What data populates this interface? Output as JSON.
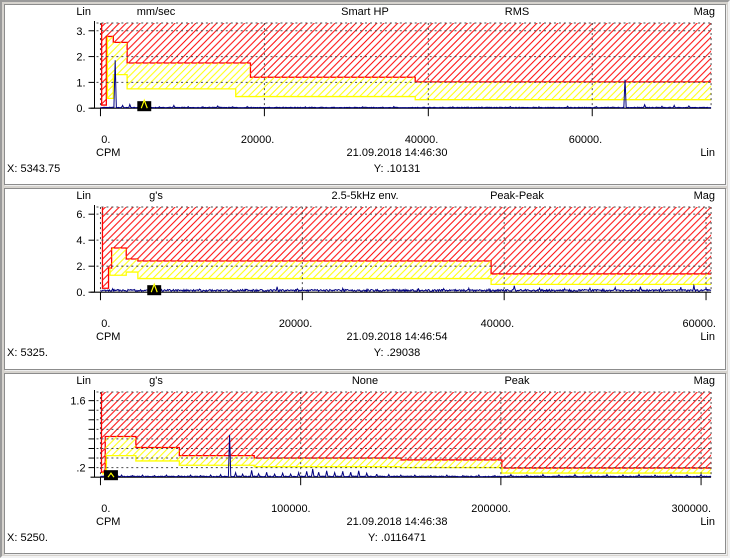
{
  "colors": {
    "alarm_red": "#ff0000",
    "alert_yellow": "#ffff00",
    "trace_blue": "#000080",
    "grid_dash": "#4a4a4a",
    "axis_black": "#000000",
    "marker_black": "#000000",
    "panel_bg": "#ffffff",
    "frame_gray": "#d6d3ce"
  },
  "panels": [
    {
      "header": {
        "scale": "Lin",
        "unit": "mm/sec",
        "filter": "Smart HP",
        "detection": "RMS",
        "mag": "Mag"
      },
      "footer": {
        "x_unit": "CPM",
        "timestamp": "21.09.2018 14:46:30",
        "scale_right": "Lin",
        "cursor_x": "X: 5343.75",
        "cursor_y": "Y: .10131"
      }
    },
    {
      "header": {
        "scale": "Lin",
        "unit": "g's",
        "filter": "2.5-5kHz env.",
        "detection": "Peak-Peak",
        "mag": "Mag"
      },
      "footer": {
        "x_unit": "CPM",
        "timestamp": "21.09.2018 14:46:54",
        "scale_right": "Lin",
        "cursor_x": "X: 5325.",
        "cursor_y": "Y: .29038"
      }
    },
    {
      "header": {
        "scale": "Lin",
        "unit": "g's",
        "filter": "None",
        "detection": "Peak",
        "mag": "Mag"
      },
      "footer": {
        "x_unit": "CPM",
        "timestamp": "21.09.2018 14:46:38",
        "scale_right": "Lin",
        "cursor_x": "X: 5250.",
        "cursor_y": "Y: .0116471"
      }
    }
  ],
  "chart_data": [
    {
      "type": "line",
      "title": "Smart HP spectrum",
      "unit": "mm/sec",
      "detection": "RMS",
      "x_unit": "CPM",
      "x_max": 74500,
      "x_ticks": [
        0,
        20000,
        40000,
        60000
      ],
      "x_tick_labels": [
        "0.",
        "20000.",
        "40000.",
        "60000."
      ],
      "y_max": 3.3,
      "y_ticks": [
        0,
        1,
        2,
        3
      ],
      "y_tick_labels": [
        "0.",
        "1.",
        "2.",
        "3."
      ],
      "y_grid": [
        1,
        2,
        3
      ],
      "alarm_red_steps": [
        [
          150,
          0.12
        ],
        [
          720,
          2.78
        ],
        [
          1570,
          2.55
        ],
        [
          3250,
          1.75
        ],
        [
          18300,
          1.2
        ],
        [
          38400,
          1.02
        ]
      ],
      "alert_yellow_steps": [
        [
          850,
          0.38
        ],
        [
          1570,
          1.3
        ],
        [
          3250,
          0.75
        ],
        [
          16500,
          0.45
        ],
        [
          38400,
          0.33
        ]
      ],
      "noise_floor": 0.04,
      "peaks": [
        [
          1790,
          1.85
        ],
        [
          2700,
          0.1
        ],
        [
          3580,
          0.14
        ],
        [
          5343.75,
          0.101
        ],
        [
          7200,
          0.05
        ],
        [
          8950,
          0.1
        ],
        [
          10700,
          0.06
        ],
        [
          12500,
          0.05
        ],
        [
          14300,
          0.08
        ],
        [
          16100,
          0.05
        ],
        [
          17900,
          0.06
        ],
        [
          21500,
          0.04
        ],
        [
          25000,
          0.05
        ],
        [
          28500,
          0.04
        ],
        [
          32000,
          0.05
        ],
        [
          35800,
          0.06
        ],
        [
          39500,
          0.04
        ],
        [
          43000,
          0.05
        ],
        [
          46500,
          0.04
        ],
        [
          50000,
          0.06
        ],
        [
          53500,
          0.05
        ],
        [
          57000,
          0.07
        ],
        [
          60500,
          0.06
        ],
        [
          64000,
          1.1
        ],
        [
          66400,
          0.13
        ],
        [
          68500,
          0.07
        ],
        [
          70000,
          0.1
        ],
        [
          71800,
          0.08
        ]
      ],
      "cursor": {
        "x": 5343.75,
        "y": 0.10131
      }
    },
    {
      "type": "line",
      "title": "2.5-5kHz envelope spectrum",
      "unit": "g's",
      "detection": "Peak-Peak",
      "x_unit": "CPM",
      "x_max": 60500,
      "x_ticks": [
        0,
        20000,
        40000,
        60000
      ],
      "x_tick_labels": [
        "0.",
        "20000.",
        "40000.",
        "60000."
      ],
      "y_max": 6.55,
      "y_ticks": [
        0,
        2,
        4,
        6
      ],
      "y_tick_labels": [
        "0.",
        "2.",
        "4.",
        "6."
      ],
      "y_grid": [
        2,
        4,
        6
      ],
      "alarm_red_steps": [
        [
          200,
          0.3
        ],
        [
          800,
          1.85
        ],
        [
          1100,
          3.4
        ],
        [
          2550,
          2.55
        ],
        [
          3700,
          2.4
        ],
        [
          38700,
          1.4
        ]
      ],
      "alert_yellow_steps": [
        [
          950,
          1.3
        ],
        [
          2550,
          1.55
        ],
        [
          3700,
          1.05
        ],
        [
          38700,
          0.6
        ]
      ],
      "noise_floor": 0.22,
      "peaks": [
        [
          1200,
          0.25
        ],
        [
          3000,
          0.2
        ],
        [
          5325,
          0.29
        ],
        [
          7500,
          0.18
        ],
        [
          9800,
          0.22
        ],
        [
          12000,
          0.18
        ],
        [
          14500,
          0.22
        ],
        [
          17500,
          0.42
        ],
        [
          19500,
          0.25
        ],
        [
          21500,
          0.2
        ],
        [
          24000,
          0.28
        ],
        [
          26500,
          0.22
        ],
        [
          29000,
          0.25
        ],
        [
          31500,
          0.3
        ],
        [
          34000,
          0.26
        ],
        [
          36500,
          0.3
        ],
        [
          38500,
          0.24
        ],
        [
          41000,
          0.5
        ],
        [
          43500,
          0.3
        ],
        [
          46000,
          0.26
        ],
        [
          48500,
          0.3
        ],
        [
          51000,
          0.35
        ],
        [
          53500,
          0.42
        ],
        [
          55500,
          0.3
        ],
        [
          57500,
          0.38
        ],
        [
          58800,
          0.52
        ],
        [
          60000,
          0.3
        ]
      ],
      "cursor": {
        "x": 5325,
        "y": 0.29038
      }
    },
    {
      "type": "line",
      "title": "Unfiltered spectrum",
      "unit": "g's",
      "detection": "Peak",
      "x_unit": "CPM",
      "x_max": 305000,
      "x_ticks": [
        0,
        100000,
        200000,
        300000
      ],
      "x_tick_labels": [
        "0.",
        "100000.",
        "200000.",
        "300000."
      ],
      "y_max": 1.78,
      "y_ticks": [
        0.2,
        0.4,
        0.6,
        0.8,
        1.0,
        1.2,
        1.4,
        1.6
      ],
      "y_tick_labels": [
        ".2",
        "",
        "",
        "",
        "",
        "",
        "",
        "1.6"
      ],
      "y_grid": [
        0.2,
        0.4,
        0.6,
        0.8,
        1.0,
        1.2,
        1.4,
        1.6
      ],
      "alarm_red_steps": [
        [
          500,
          0.1
        ],
        [
          2400,
          0.85
        ],
        [
          17700,
          0.62
        ],
        [
          39400,
          0.45
        ],
        [
          76800,
          0.4
        ],
        [
          150000,
          0.36
        ],
        [
          200500,
          0.19
        ]
      ],
      "alert_yellow_steps": [
        [
          1200,
          0.07
        ],
        [
          3000,
          0.45
        ],
        [
          17700,
          0.34
        ],
        [
          39400,
          0.25
        ],
        [
          76800,
          0.22
        ],
        [
          150000,
          0.2
        ],
        [
          200500,
          0.085
        ]
      ],
      "noise_floor": 0.025,
      "peaks": [
        [
          5250,
          0.0116
        ],
        [
          10500,
          0.04
        ],
        [
          16000,
          0.03
        ],
        [
          21000,
          0.04
        ],
        [
          27000,
          0.03
        ],
        [
          33000,
          0.04
        ],
        [
          39000,
          0.03
        ],
        [
          45000,
          0.04
        ],
        [
          50000,
          0.03
        ],
        [
          55000,
          0.04
        ],
        [
          60000,
          0.05
        ],
        [
          64500,
          0.88
        ],
        [
          67500,
          0.09
        ],
        [
          71000,
          0.06
        ],
        [
          75500,
          0.14
        ],
        [
          79000,
          0.07
        ],
        [
          83000,
          0.1
        ],
        [
          87000,
          0.06
        ],
        [
          91000,
          0.08
        ],
        [
          95000,
          0.06
        ],
        [
          99000,
          0.09
        ],
        [
          103000,
          0.12
        ],
        [
          106000,
          0.17
        ],
        [
          109000,
          0.1
        ],
        [
          113000,
          0.13
        ],
        [
          117000,
          0.09
        ],
        [
          121000,
          0.12
        ],
        [
          125000,
          0.1
        ],
        [
          129000,
          0.13
        ],
        [
          133000,
          0.08
        ],
        [
          138000,
          0.06
        ],
        [
          144000,
          0.05
        ],
        [
          150000,
          0.04
        ],
        [
          157000,
          0.04
        ],
        [
          165000,
          0.03
        ],
        [
          173000,
          0.04
        ],
        [
          181000,
          0.03
        ],
        [
          189000,
          0.04
        ],
        [
          197000,
          0.03
        ],
        [
          205000,
          0.05
        ],
        [
          213000,
          0.04
        ],
        [
          221000,
          0.05
        ],
        [
          229000,
          0.04
        ],
        [
          237000,
          0.05
        ],
        [
          245000,
          0.04
        ],
        [
          253000,
          0.05
        ],
        [
          261000,
          0.04
        ],
        [
          269000,
          0.05
        ],
        [
          277000,
          0.04
        ],
        [
          285000,
          0.05
        ],
        [
          293000,
          0.04
        ],
        [
          300000,
          0.05
        ]
      ],
      "cursor": {
        "x": 5250,
        "y": 0.0116471
      }
    }
  ]
}
